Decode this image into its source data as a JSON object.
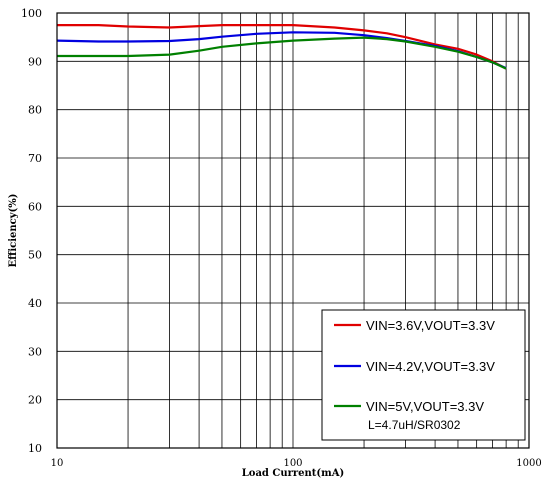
{
  "chart_data": {
    "type": "line",
    "title": "",
    "xlabel": "Load Current(mA)",
    "ylabel": "Efficiency(%)",
    "xscale": "log",
    "xlim": [
      10,
      1000
    ],
    "ylim": [
      10,
      100
    ],
    "xticks": [
      10,
      100,
      1000
    ],
    "xtick_labels": [
      "10",
      "100",
      "1000"
    ],
    "yticks": [
      10,
      20,
      30,
      40,
      50,
      60,
      70,
      80,
      90,
      100
    ],
    "ytick_labels": [
      "10",
      "20",
      "30",
      "40",
      "50",
      "60",
      "70",
      "80",
      "90",
      "100"
    ],
    "grid": true,
    "legend_position": "bottom-right",
    "legend_note": "L=4.7uH/SR0302",
    "series": [
      {
        "name": "VIN=3.6V,VOUT=3.3V",
        "color": "#e00000",
        "x": [
          10,
          15,
          20,
          30,
          40,
          50,
          70,
          100,
          150,
          200,
          250,
          300,
          400,
          500,
          600,
          700,
          800
        ],
        "y": [
          97.5,
          97.5,
          97.2,
          97.0,
          97.3,
          97.5,
          97.5,
          97.5,
          97.0,
          96.4,
          95.8,
          95.0,
          93.5,
          92.6,
          91.4,
          90.0,
          88.5
        ]
      },
      {
        "name": "VIN=4.2V,VOUT=3.3V",
        "color": "#0000e0",
        "x": [
          10,
          15,
          20,
          30,
          40,
          50,
          70,
          100,
          150,
          200,
          250,
          300,
          400,
          500,
          600,
          700,
          800
        ],
        "y": [
          94.3,
          94.1,
          94.1,
          94.2,
          94.6,
          95.1,
          95.7,
          96.0,
          95.9,
          95.4,
          94.8,
          94.2,
          93.2,
          92.1,
          90.9,
          89.8,
          88.6
        ]
      },
      {
        "name": "VIN=5V,VOUT=3.3V",
        "color": "#008000",
        "x": [
          10,
          15,
          20,
          30,
          40,
          50,
          70,
          100,
          150,
          200,
          250,
          300,
          400,
          500,
          600,
          700,
          800
        ],
        "y": [
          91.1,
          91.1,
          91.1,
          91.4,
          92.2,
          93.0,
          93.7,
          94.3,
          94.7,
          94.9,
          94.6,
          94.1,
          93.0,
          92.0,
          90.9,
          89.8,
          88.5
        ]
      }
    ]
  }
}
